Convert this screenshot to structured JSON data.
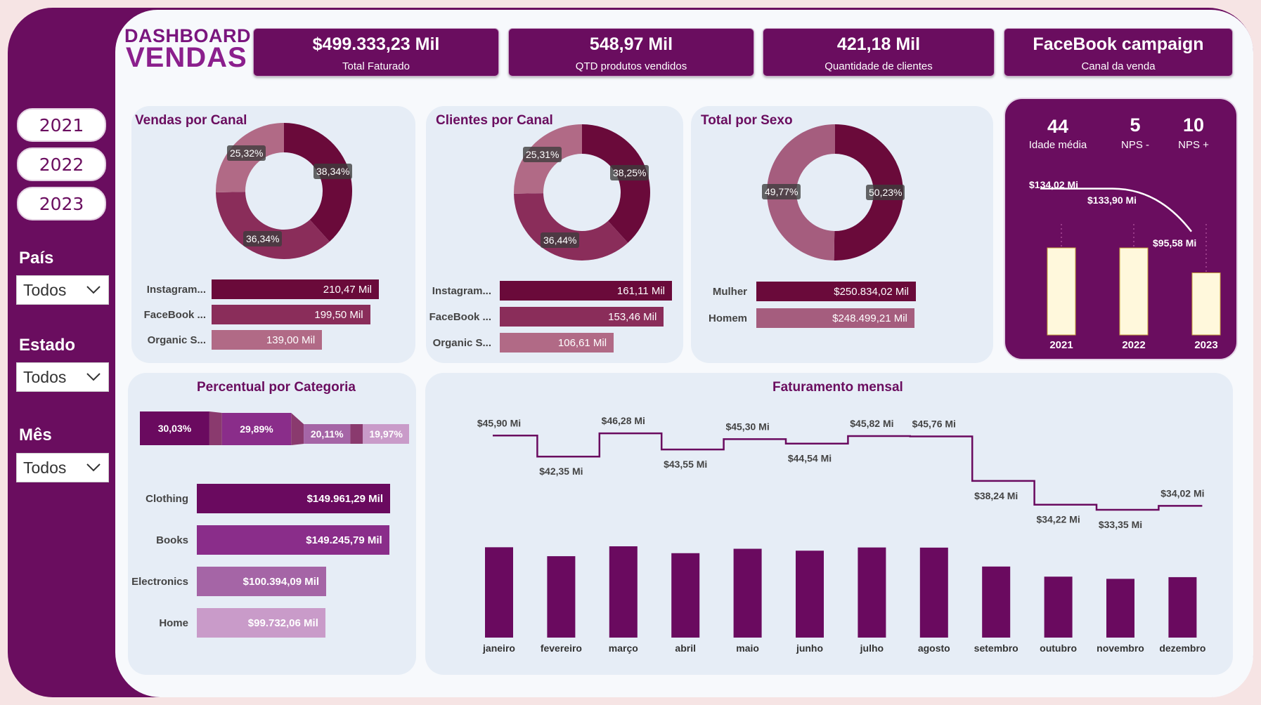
{
  "title": {
    "line1": "DASHBOARD",
    "line2": "VENDAS"
  },
  "kpis": [
    {
      "value": "$499.333,23 Mil",
      "label": "Total Faturado"
    },
    {
      "value": "548,97 Mil",
      "label": "QTD produtos vendidos"
    },
    {
      "value": "421,18 Mil",
      "label": "Quantidade de clientes"
    },
    {
      "value": "FaceBook campaign",
      "label": "Canal da venda"
    }
  ],
  "sidebar": {
    "years": [
      "2021",
      "2022",
      "2023"
    ],
    "filters": [
      {
        "label": "País",
        "value": "Todos"
      },
      {
        "label": "Estado",
        "value": "Todos"
      },
      {
        "label": "Mês",
        "value": "Todos"
      }
    ]
  },
  "colors": {
    "dark": "#6a0d5f",
    "mid": "#8a2d5a",
    "light": "#b16a86",
    "cream": "#fff8dc"
  },
  "vendas_canal": {
    "title": "Vendas por Canal",
    "slices": [
      {
        "pct": 38.34,
        "label": "38,34%"
      },
      {
        "pct": 36.34,
        "label": "36,34%"
      },
      {
        "pct": 25.32,
        "label": "25,32%"
      }
    ],
    "bars": [
      {
        "name": "Instagram...",
        "value": 210.47,
        "label": "210,47 Mil"
      },
      {
        "name": "FaceBook ...",
        "value": 199.5,
        "label": "199,50 Mil"
      },
      {
        "name": "Organic S...",
        "value": 139.0,
        "label": "139,00 Mil"
      }
    ]
  },
  "clientes_canal": {
    "title": "Clientes por Canal",
    "slices": [
      {
        "pct": 38.25,
        "label": "38,25%"
      },
      {
        "pct": 36.44,
        "label": "36,44%"
      },
      {
        "pct": 25.31,
        "label": "25,31%"
      }
    ],
    "bars": [
      {
        "name": "Instagram...",
        "value": 161.11,
        "label": "161,11 Mil"
      },
      {
        "name": "FaceBook ...",
        "value": 153.46,
        "label": "153,46 Mil"
      },
      {
        "name": "Organic S...",
        "value": 106.61,
        "label": "106,61 Mil"
      }
    ]
  },
  "sexo": {
    "title": "Total por Sexo",
    "slices": [
      {
        "pct": 50.23,
        "label": "50,23%"
      },
      {
        "pct": 49.77,
        "label": "49,77%"
      }
    ],
    "bars": [
      {
        "name": "Mulher",
        "value": 250834.02,
        "label": "$250.834,02 Mil"
      },
      {
        "name": "Homem",
        "value": 248499.21,
        "label": "$248.499,21 Mil"
      }
    ]
  },
  "nps": {
    "idade": {
      "value": "44",
      "label": "Idade média"
    },
    "nps_minus": {
      "value": "5",
      "label": "NPS -"
    },
    "nps_plus": {
      "value": "10",
      "label": "NPS +"
    },
    "years": [
      "2021",
      "2022",
      "2023"
    ],
    "line_values": [
      134.02,
      133.9,
      95.58
    ],
    "line_labels": [
      "$134,02 Mi",
      "$133,90 Mi",
      "$95,58 Mi"
    ],
    "bar_values": [
      134.02,
      133.9,
      95.58
    ]
  },
  "categoria": {
    "title": "Percentual por Categoria",
    "segments": [
      {
        "pct": 30.03,
        "label": "30,03%"
      },
      {
        "pct": 29.89,
        "label": "29,89%"
      },
      {
        "pct": 20.11,
        "label": "20,11%"
      },
      {
        "pct": 19.97,
        "label": "19,97%"
      }
    ],
    "bars": [
      {
        "name": "Clothing",
        "value": 149961.29,
        "label": "$149.961,29 Mil"
      },
      {
        "name": "Books",
        "value": 149245.79,
        "label": "$149.245,79 Mil"
      },
      {
        "name": "Electronics",
        "value": 100394.09,
        "label": "$100.394,09 Mil"
      },
      {
        "name": "Home",
        "value": 99732.06,
        "label": "$99.732,06 Mil"
      }
    ]
  },
  "chart_data": {
    "type": "bar",
    "title": "Faturamento mensal",
    "categories": [
      "janeiro",
      "fevereiro",
      "março",
      "abril",
      "maio",
      "junho",
      "julho",
      "agosto",
      "setembro",
      "outubro",
      "novembro",
      "dezembro"
    ],
    "values": [
      45.9,
      42.35,
      46.28,
      43.55,
      45.3,
      44.54,
      45.82,
      45.76,
      38.24,
      34.22,
      33.35,
      34.02
    ],
    "labels": [
      "$45,90 Mi",
      "$42,35 Mi",
      "$46,28 Mi",
      "$43,55 Mi",
      "$45,30 Mi",
      "$44,54 Mi",
      "$45,82 Mi",
      "$45,76 Mi",
      "$38,24 Mi",
      "$34,22 Mi",
      "$33,35 Mi",
      "$34,02 Mi"
    ]
  }
}
